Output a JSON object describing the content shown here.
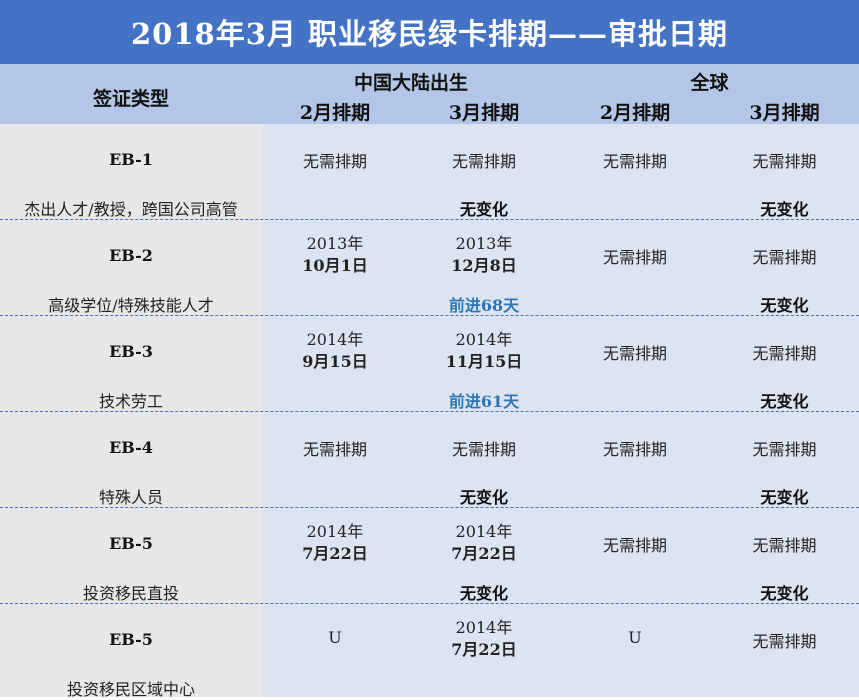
{
  "title": "2018年3月  职业移民绿卡排期——审批日期",
  "header": {
    "visa_type": "签证类型",
    "group_china": "中国大陆出生",
    "group_world": "全球",
    "cols": [
      "2月排期",
      "3月排期",
      "2月排期",
      "3月排期"
    ]
  },
  "rows": [
    {
      "type": "EB-1",
      "desc": "杰出人才/教授，跨国公司高管",
      "china_feb": {
        "line1": "无需排期",
        "line2": ""
      },
      "china_mar": {
        "line1": "无需排期",
        "line2": ""
      },
      "world_feb": "无需排期",
      "world_mar": "无需排期",
      "china_change": "无变化",
      "world_change": "无变化"
    },
    {
      "type": "EB-2",
      "desc": "高级学位/特殊技能人才",
      "china_feb": {
        "line1": "2013年",
        "line2": "10月1日"
      },
      "china_mar": {
        "line1": "2013年",
        "line2": "12月8日"
      },
      "world_feb": "无需排期",
      "world_mar": "无需排期",
      "china_change": "前进68天",
      "world_change": "无变化"
    },
    {
      "type": "EB-3",
      "desc": "技术劳工",
      "china_feb": {
        "line1": "2014年",
        "line2": "9月15日"
      },
      "china_mar": {
        "line1": "2014年",
        "line2": "11月15日"
      },
      "world_feb": "无需排期",
      "world_mar": "无需排期",
      "china_change": "前进61天",
      "world_change": "无变化"
    },
    {
      "type": "EB-4",
      "desc": "特殊人员",
      "china_feb": {
        "line1": "无需排期",
        "line2": ""
      },
      "china_mar": {
        "line1": "无需排期",
        "line2": ""
      },
      "world_feb": "无需排期",
      "world_mar": "无需排期",
      "china_change": "无变化",
      "world_change": "无变化"
    },
    {
      "type": "EB-5",
      "desc": "投资移民直投",
      "china_feb": {
        "line1": "2014年",
        "line2": "7月22日"
      },
      "china_mar": {
        "line1": "2014年",
        "line2": "7月22日"
      },
      "world_feb": "无需排期",
      "world_mar": "无需排期",
      "china_change": "无变化",
      "world_change": "无变化"
    },
    {
      "type": "EB-5",
      "desc": "投资移民区域中心",
      "china_feb": {
        "line1": "U",
        "line2": ""
      },
      "china_mar": {
        "line1": "2014年",
        "line2": "7月22日"
      },
      "world_feb": "U",
      "world_mar": "无需排期",
      "china_change": "",
      "world_change": ""
    }
  ],
  "colors": {
    "title_bg": "#4472c4",
    "header_bg": "#b4c6e7",
    "left_bg": "#e8e6e6",
    "body_bg": "#dce3f1",
    "advance_text": "#2e75b6"
  }
}
